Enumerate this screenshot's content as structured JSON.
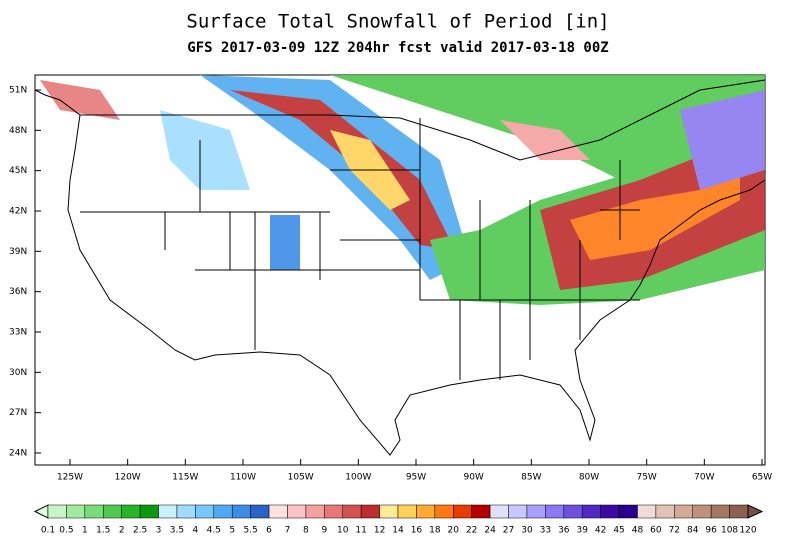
{
  "header": {
    "title": "Surface Total Snowfall of Period [in]",
    "subtitle": "GFS 2017-03-09 12Z 204hr fcst valid 2017-03-18 00Z"
  },
  "map": {
    "lat_labels": [
      "51N",
      "48N",
      "45N",
      "42N",
      "39N",
      "36N",
      "33N",
      "30N",
      "27N",
      "24N"
    ],
    "lon_labels": [
      "125W",
      "120W",
      "115W",
      "110W",
      "105W",
      "100W",
      "95W",
      "90W",
      "85W",
      "80W",
      "75W",
      "70W",
      "65W"
    ]
  },
  "colorbar": {
    "labels": [
      "0.1",
      "0.5",
      "1",
      "1.5",
      "2",
      "2.5",
      "3",
      "3.5",
      "4",
      "4.5",
      "5",
      "5.5",
      "6",
      "7",
      "8",
      "9",
      "10",
      "11",
      "12",
      "14",
      "16",
      "18",
      "20",
      "22",
      "24",
      "27",
      "30",
      "33",
      "36",
      "39",
      "42",
      "45",
      "48",
      "60",
      "72",
      "84",
      "96",
      "108",
      "120"
    ],
    "colors": [
      "#e0ffe0",
      "#c8f5c8",
      "#a0eba0",
      "#78dc78",
      "#50c850",
      "#28b428",
      "#0f960f",
      "#c8f0ff",
      "#a0dcff",
      "#78c8fa",
      "#50aaf0",
      "#3c8ce6",
      "#2864c8",
      "#ffe1e1",
      "#ffc3c3",
      "#f5a0a0",
      "#e67878",
      "#d25050",
      "#be2d2d",
      "#ffeb96",
      "#ffd25a",
      "#ffaa32",
      "#ff7814",
      "#e63c00",
      "#b40000",
      "#e1e1ff",
      "#c8c8ff",
      "#aaa0ff",
      "#8c78f0",
      "#6e50dc",
      "#5028c3",
      "#3c0aa0",
      "#28008c",
      "#f0dcd2",
      "#e1c3b4",
      "#d2aa96",
      "#be9178",
      "#a57864",
      "#8c5f50",
      "#785046"
    ]
  }
}
